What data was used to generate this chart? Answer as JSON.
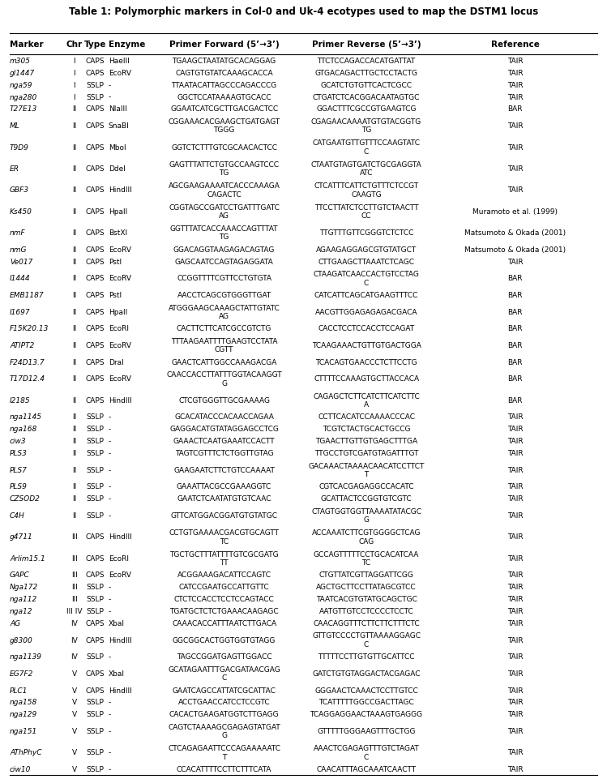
{
  "title": "Table 1: Polymorphic markers in Col-0 and Uk-4 ecotypes used to map the DSTM1 locus",
  "headers": [
    "Marker",
    "Chr",
    "Type",
    "Enzyme",
    "Primer Forward (5’→3’)",
    "Primer Reverse (5’→3’)",
    "Reference"
  ],
  "rows": [
    [
      "m305",
      "I",
      "CAPS",
      "HaeIII",
      "TGAAGCTAATATGCACAGGAG",
      "TTCTCCAGACCACATGATTAT",
      "TAIR"
    ],
    [
      "gl1447",
      "I",
      "CAPS",
      "EcoRV",
      "CAGTGTGTATCAAAGCACCA",
      "GTGACAGACTTGCTCCTACTG",
      "TAIR"
    ],
    [
      "nga59",
      "I",
      "SSLP",
      "-",
      "TTAATACATTAGCCCAGACCCG",
      "GCATCTGTGTTCACTCGCC",
      "TAIR"
    ],
    [
      "nga280",
      "I",
      "SSLP",
      "-",
      "GGCTCCATAAAAGTGCACC",
      "CTGATCTCACGGACAATAGTGC",
      "TAIR"
    ],
    [
      "T27E13",
      "II",
      "CAPS",
      "NlaIII",
      "GGAATCATCGCTTGACGACTCC",
      "GGACTTTCGCCGTGAAGTCG",
      "BAR"
    ],
    [
      "ML",
      "II",
      "CAPS",
      "SnaBI",
      "CGGAAACACGAAGCTGATGAGT\nTGGG",
      "CGAGAACAAAATGTGTACGGTG\nTG",
      "TAIR"
    ],
    [
      "T9D9",
      "II",
      "CAPS",
      "MboI",
      "GGTCTCTTTGTCGCAACACTCC",
      "CATGAATGTTGTTTCCAAGTATC\nC",
      "TAIR"
    ],
    [
      "ER",
      "II",
      "CAPS",
      "DdeI",
      "GAGTTTATTCTGTGCCAAGTCCC\nTG",
      "CTAATGTAGTGATCTGCGAGGTA\nATC",
      "TAIR"
    ],
    [
      "GBF3",
      "II",
      "CAPS",
      "HindIII",
      "AGCGAAGAAAATCACCCAAAGA\nCAGACTC",
      "CTCATTTCATTCTGTTTCTCCGT\nCAAGTG",
      "TAIR"
    ],
    [
      "Ks450",
      "II",
      "CAPS",
      "HpaII",
      "CGGTAGCCGATCCTGATTTGATC\nAG",
      "TTCCTTATCTCCTTGTCTAACTT\nCC",
      "Muramoto et al. (1999)"
    ],
    [
      "nmF",
      "II",
      "CAPS",
      "BstXI",
      "GGTTTATCACCAAACCAGTTTAT\nTG",
      "TTGTTTGTTCGGGTCTCTCC",
      "Matsumoto & Okada (2001)"
    ],
    [
      "nmG",
      "II",
      "CAPS",
      "EcoRV",
      "GGACAGGTAAGAGACAGTAG",
      "AGAAGAGGAGCGTGTATGCT",
      "Matsumoto & Okada (2001)"
    ],
    [
      "Ve017",
      "II",
      "CAPS",
      "PstI",
      "GAGCAATCCAGTAGAGGATA",
      "CTTGAAGCTTAAATCTCAGC",
      "TAIR"
    ],
    [
      "I1444",
      "II",
      "CAPS",
      "EcoRV",
      "CCGGTTTTCGTTCCTGTGTA",
      "CTAAGATCAACCACTGTCCTAG\nC",
      "BAR"
    ],
    [
      "EMB1187",
      "II",
      "CAPS",
      "PstI",
      "AACCTCAGCGTGGGTTGAT",
      "CATCATTCAGCATGAAGTTTCC",
      "BAR"
    ],
    [
      "I1697",
      "II",
      "CAPS",
      "HpaII",
      "ATGGGAAGCAAAGCTATTGTATC\nAG",
      "AACGTTGGAGAGAGACGACA",
      "BAR"
    ],
    [
      "F15K20.13",
      "II",
      "CAPS",
      "EcoRI",
      "CACTTCTTCATCGCCGTCTG",
      "CACCTCCTCCACCTCCAGAT",
      "BAR"
    ],
    [
      "ATIPT2",
      "II",
      "CAPS",
      "EcoRV",
      "TTTAAGAATTTTGAAGTCCTATA\nCGTT",
      "TCAAGAAACTGTTGTGACTGGA",
      "BAR"
    ],
    [
      "F24D13.7",
      "II",
      "CAPS",
      "DraI",
      "GAACTCATTGGCCAAAGACGA",
      "TCACAGTGAACCCTCTTCCTG",
      "BAR"
    ],
    [
      "T17D12.4",
      "II",
      "CAPS",
      "EcoRV",
      "CAACCACCTTATTTGGTACAAGGT\nG",
      "CTTTTCCAAAGTGCTTACCACA",
      "BAR"
    ],
    [
      "I2185",
      "II",
      "CAPS",
      "HindIII",
      "CTCGTGGGTTGCGAAAAG",
      "CAGAGCTCTTCATCTTCATCTTC\nA",
      "BAR"
    ],
    [
      "nga1145",
      "II",
      "SSLP",
      "-",
      "GCACATACCCACAACCAGAA",
      "CCTTCACATCCAAAACCCAC",
      "TAIR"
    ],
    [
      "nga168",
      "II",
      "SSLP",
      "-",
      "GAGGACATGTATAGGAGCCTCG",
      "TCGTCTACTGCACTGCCG",
      "TAIR"
    ],
    [
      "ciw3",
      "II",
      "SSLP",
      "-",
      "GAAACTCAATGAAATCCACTT",
      "TGAACTTGTTGTGAGCTTTGA",
      "TAIR"
    ],
    [
      "PLS3",
      "II",
      "SSLP",
      "-",
      "TAGTCGTTTCTCTGGTTGTAG",
      "TTGCCTGTCGATGTAGATTTGT",
      "TAIR"
    ],
    [
      "PLS7",
      "II",
      "SSLP",
      "-",
      "GAAGAATCTTCTGTCCAAAAT",
      "GACAAACTAAAACAACATCCTTCT\nT",
      "TAIR"
    ],
    [
      "PLS9",
      "II",
      "SSLP",
      "-",
      "GAAATTACGCCGAAAGGTC",
      "CGTCACGAGAGGCCACATC",
      "TAIR"
    ],
    [
      "CZSOD2",
      "II",
      "SSLP",
      "-",
      "GAATCTCAATATGTGTCAAC",
      "GCATTACTCCGGTGTCGTC",
      "TAIR"
    ],
    [
      "C4H",
      "II",
      "SSLP",
      "-",
      "GTTCATGGACGGATGTGTATGC",
      "CTAGTGGTGGTTAAAATATACGC\nG",
      "TAIR"
    ],
    [
      "g4711",
      "III",
      "CAPS",
      "HindIII",
      "CCTGTGAAAACGACGTGCAGTT\nTC",
      "ACCAAATCTTCGTGGGGCTCAG\nCAG",
      "TAIR"
    ],
    [
      "Arlim15.1",
      "III",
      "CAPS",
      "EcoRI",
      "TGCTGCTTTATTTTGTCGCGATG\nTT",
      "GCCAGTTTTTCCTGCACATCAA\nTC",
      "TAIR"
    ],
    [
      "GAPC",
      "III",
      "CAPS",
      "EcoRV",
      "ACGGAAAGACATTCCAGTC",
      "CTGTTATCGTTAGGATTCGG",
      "TAIR"
    ],
    [
      "Nga172",
      "III",
      "SSLP",
      "-",
      "CATCCGAATGCCATTGTTC",
      "AGCTGCTTCCTTATAGCGTCC",
      "TAIR"
    ],
    [
      "nga112",
      "III",
      "SSLP",
      "-",
      "CTCTCCACCTCCTCCAGTACC",
      "TAATCACGTGTATGCAGCTGC",
      "TAIR"
    ],
    [
      "nga12",
      "III IV",
      "SSLP",
      "-",
      "TGATGCTCTCTGAAACAAGAGC",
      "AATGTTGTCCTCCCCTCCTC",
      "TAIR"
    ],
    [
      "AG",
      "IV",
      "CAPS",
      "XbaI",
      "CAAACACCATTTAATCTTGACA",
      "CAACAGGTTTCTTCTTCTTTCTC",
      "TAIR"
    ],
    [
      "g8300",
      "IV",
      "CAPS",
      "HindIII",
      "GGCGGCACTGGTGGTGTAGG",
      "GTTGTCCCCTGTTAAAAGGAGC\nC",
      "TAIR"
    ],
    [
      "nga1139",
      "IV",
      "SSLP",
      "-",
      "TAGCCGGATGAGTTGGACC",
      "TTTTTCCTTGTGTTGCATTCC",
      "TAIR"
    ],
    [
      "EG7F2",
      "V",
      "CAPS",
      "XbaI",
      "GCATAGAATTTGACGATAACGAG\nC",
      "GATCTGTGTAGGACTACGAGAC",
      "TAIR"
    ],
    [
      "PLC1",
      "V",
      "CAPS",
      "HindIII",
      "GAATCAGCCATTATCGCATTAC",
      "GGGAACTCAAACTCCTTGTCC",
      "TAIR"
    ],
    [
      "nga158",
      "V",
      "SSLP",
      "-",
      "ACCTGAACCATCCTCCGTC",
      "TCATTTTTGGCCGACTTAGC",
      "TAIR"
    ],
    [
      "nga129",
      "V",
      "SSLP",
      "-",
      "CACACTGAAGATGGTCTTGAGG",
      "TCAGGAGGAACTAAAGTGAGGG",
      "TAIR"
    ],
    [
      "nga151",
      "V",
      "SSLP",
      "-",
      "CAGTCTAAAAGCGAGAGTATGAT\nG",
      "GTTTTTGGGAAGTTTGCTGG",
      "TAIR"
    ],
    [
      "AThPhyC",
      "V",
      "SSLP",
      "-",
      "CTCAGAGAATTCCCAGAAAAATC\nT",
      "AAACTCGAGAGTTTGTCTAGAT\nC",
      "TAIR"
    ],
    [
      "ciw10",
      "V",
      "SSLP",
      "-",
      "CCACATTTTCCTTCTTTCATA",
      "CAACATTTAGCAAATCAACTT",
      "TAIR"
    ]
  ],
  "font_size": 6.5,
  "header_font_size": 7.5,
  "mono_font": "DejaVu Sans Mono",
  "sans_font": "DejaVu Sans"
}
